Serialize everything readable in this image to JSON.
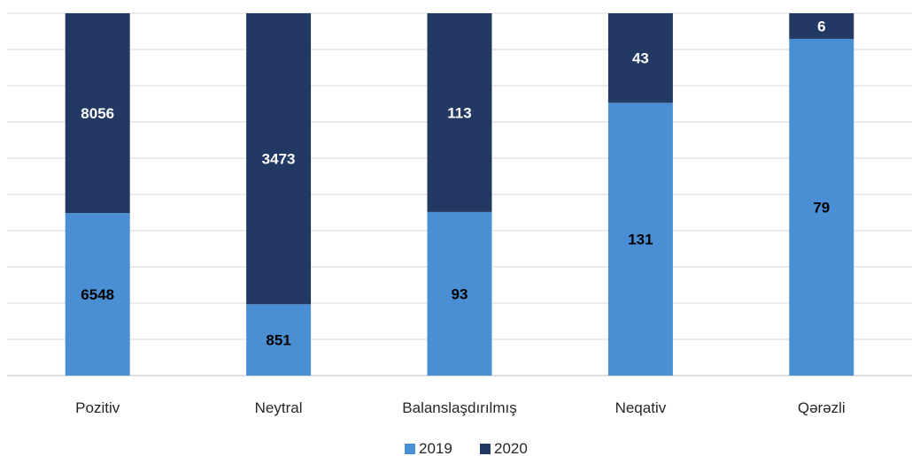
{
  "chart_data": {
    "type": "bar",
    "stacked": true,
    "normalized": true,
    "categories": [
      "Pozitiv",
      "Neytral",
      "Balanslaşdırılmış",
      "Neqativ",
      "Qərəzli"
    ],
    "series": [
      {
        "name": "2019",
        "values": [
          6548,
          851,
          93,
          131,
          79
        ],
        "color": "#4a8fd3"
      },
      {
        "name": "2020",
        "values": [
          8056,
          3473,
          113,
          43,
          6
        ],
        "color": "#213963"
      }
    ],
    "title": "",
    "xlabel": "",
    "ylabel": "",
    "ylim": [
      0,
      100
    ],
    "grid": true,
    "legend": "bottom",
    "label_colors": {
      "2019": "#000000",
      "2020": "#ffffff"
    }
  }
}
